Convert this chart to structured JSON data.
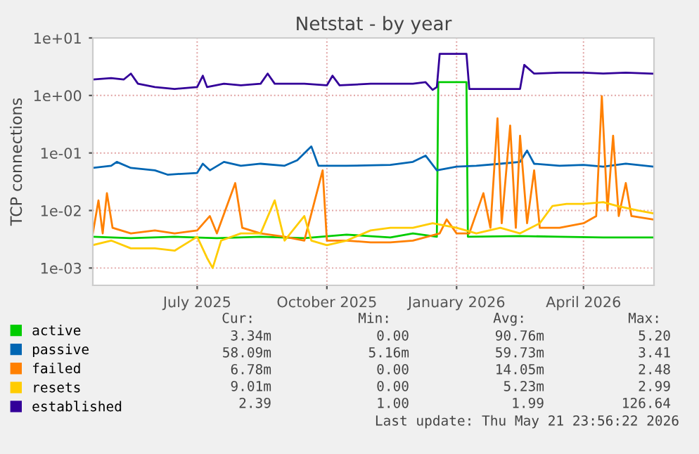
{
  "chart_data": {
    "type": "line",
    "title": "Netstat - by year",
    "ylabel": "TCP connections",
    "log": "y",
    "grid": true,
    "legend": "bottom",
    "marker": "none",
    "line_style": "solid",
    "xlim": [
      "2025-04-18",
      "2026-05-21"
    ],
    "xticks": [
      {
        "value": "2025-07-01",
        "label": "July 2025"
      },
      {
        "value": "2025-10-01",
        "label": "October 2025"
      },
      {
        "value": "2026-01-01",
        "label": "January 2026"
      },
      {
        "value": "2026-04-01",
        "label": "April 2026"
      }
    ],
    "ylim": [
      0.0005,
      10
    ],
    "yticks": [
      {
        "value": 10,
        "label": "1e+01"
      },
      {
        "value": 1,
        "label": "1e+00"
      },
      {
        "value": 0.1,
        "label": "1e-01"
      },
      {
        "value": 0.01,
        "label": "1e-02"
      },
      {
        "value": 0.001,
        "label": "1e-03"
      }
    ],
    "series": [
      {
        "name": "active",
        "color": "#00cc00",
        "x": [
          "2025-04-18",
          "2025-05-15",
          "2025-06-15",
          "2025-07-15",
          "2025-08-15",
          "2025-09-15",
          "2025-10-15",
          "2025-11-15",
          "2025-12-01",
          "2025-12-18",
          "2025-12-19",
          "2026-01-08",
          "2026-01-09",
          "2026-02-15",
          "2026-03-15",
          "2026-04-15",
          "2026-05-20"
        ],
        "values": [
          0.0035,
          0.0033,
          0.0035,
          0.0033,
          0.0035,
          0.0033,
          0.0038,
          0.0034,
          0.004,
          0.0035,
          1.7,
          1.7,
          0.0035,
          0.0036,
          0.0035,
          0.0034,
          0.0034
        ]
      },
      {
        "name": "passive",
        "color": "#0066b3",
        "x": [
          "2025-04-18",
          "2025-05-01",
          "2025-05-05",
          "2025-05-15",
          "2025-06-01",
          "2025-06-10",
          "2025-07-01",
          "2025-07-05",
          "2025-07-10",
          "2025-07-20",
          "2025-08-01",
          "2025-08-15",
          "2025-09-01",
          "2025-09-10",
          "2025-09-20",
          "2025-09-25",
          "2025-10-15",
          "2025-11-15",
          "2025-12-01",
          "2025-12-10",
          "2025-12-18",
          "2026-01-01",
          "2026-01-15",
          "2026-02-01",
          "2026-02-15",
          "2026-02-20",
          "2026-02-25",
          "2026-03-15",
          "2026-04-01",
          "2026-04-15",
          "2026-05-01",
          "2026-05-20"
        ],
        "values": [
          0.055,
          0.06,
          0.07,
          0.055,
          0.05,
          0.042,
          0.045,
          0.065,
          0.05,
          0.07,
          0.06,
          0.065,
          0.06,
          0.075,
          0.13,
          0.06,
          0.06,
          0.062,
          0.07,
          0.09,
          0.05,
          0.058,
          0.06,
          0.065,
          0.07,
          0.11,
          0.065,
          0.06,
          0.062,
          0.058,
          0.065,
          0.058
        ]
      },
      {
        "name": "failed",
        "color": "#ff8000",
        "x": [
          "2025-04-18",
          "2025-04-22",
          "2025-04-25",
          "2025-04-28",
          "2025-05-02",
          "2025-05-15",
          "2025-06-01",
          "2025-06-15",
          "2025-07-01",
          "2025-07-10",
          "2025-07-15",
          "2025-07-28",
          "2025-08-02",
          "2025-08-15",
          "2025-09-01",
          "2025-09-15",
          "2025-09-28",
          "2025-10-01",
          "2025-10-15",
          "2025-11-01",
          "2025-11-15",
          "2025-12-01",
          "2025-12-20",
          "2025-12-25",
          "2026-01-01",
          "2026-01-10",
          "2026-01-20",
          "2026-01-25",
          "2026-01-30",
          "2026-02-02",
          "2026-02-08",
          "2026-02-12",
          "2026-02-15",
          "2026-02-20",
          "2026-02-25",
          "2026-03-01",
          "2026-03-15",
          "2026-04-01",
          "2026-04-10",
          "2026-04-14",
          "2026-04-18",
          "2026-04-22",
          "2026-04-26",
          "2026-05-01",
          "2026-05-05",
          "2026-05-20"
        ],
        "values": [
          0.004,
          0.015,
          0.004,
          0.02,
          0.005,
          0.004,
          0.0045,
          0.004,
          0.0045,
          0.008,
          0.004,
          0.03,
          0.005,
          0.004,
          0.0035,
          0.003,
          0.05,
          0.003,
          0.003,
          0.0028,
          0.0028,
          0.003,
          0.004,
          0.007,
          0.004,
          0.004,
          0.02,
          0.005,
          0.4,
          0.006,
          0.3,
          0.005,
          0.2,
          0.006,
          0.05,
          0.005,
          0.005,
          0.006,
          0.008,
          0.97,
          0.01,
          0.2,
          0.008,
          0.03,
          0.008,
          0.007
        ]
      },
      {
        "name": "resets",
        "color": "#ffcc00",
        "x": [
          "2025-04-18",
          "2025-05-01",
          "2025-05-15",
          "2025-06-01",
          "2025-06-15",
          "2025-07-01",
          "2025-07-08",
          "2025-07-12",
          "2025-07-18",
          "2025-08-01",
          "2025-08-15",
          "2025-08-25",
          "2025-09-01",
          "2025-09-15",
          "2025-09-20",
          "2025-10-01",
          "2025-10-15",
          "2025-11-01",
          "2025-11-15",
          "2025-12-01",
          "2025-12-15",
          "2026-01-01",
          "2026-01-15",
          "2026-02-01",
          "2026-02-15",
          "2026-03-01",
          "2026-03-10",
          "2026-03-20",
          "2026-04-01",
          "2026-04-15",
          "2026-04-25",
          "2026-05-10",
          "2026-05-20"
        ],
        "values": [
          0.0025,
          0.003,
          0.0022,
          0.0022,
          0.002,
          0.0035,
          0.0015,
          0.001,
          0.003,
          0.004,
          0.004,
          0.015,
          0.003,
          0.008,
          0.003,
          0.0025,
          0.003,
          0.0045,
          0.005,
          0.005,
          0.006,
          0.005,
          0.004,
          0.005,
          0.004,
          0.006,
          0.012,
          0.013,
          0.013,
          0.014,
          0.012,
          0.01,
          0.009
        ]
      },
      {
        "name": "established",
        "color": "#330099",
        "x": [
          "2025-04-18",
          "2025-05-01",
          "2025-05-10",
          "2025-05-15",
          "2025-05-20",
          "2025-06-01",
          "2025-06-15",
          "2025-07-01",
          "2025-07-05",
          "2025-07-08",
          "2025-07-20",
          "2025-08-01",
          "2025-08-15",
          "2025-08-20",
          "2025-08-25",
          "2025-09-15",
          "2025-10-01",
          "2025-10-05",
          "2025-10-10",
          "2025-11-01",
          "2025-11-15",
          "2025-12-01",
          "2025-12-10",
          "2025-12-15",
          "2025-12-18",
          "2025-12-20",
          "2026-01-08",
          "2026-01-10",
          "2026-02-15",
          "2026-02-18",
          "2026-02-25",
          "2026-03-15",
          "2026-04-01",
          "2026-04-15",
          "2026-05-01",
          "2026-05-20"
        ],
        "values": [
          1.9,
          2.0,
          1.9,
          2.4,
          1.6,
          1.4,
          1.3,
          1.4,
          2.2,
          1.4,
          1.6,
          1.5,
          1.6,
          2.4,
          1.6,
          1.6,
          1.5,
          2.2,
          1.5,
          1.6,
          1.6,
          1.6,
          1.7,
          1.25,
          1.4,
          5.3,
          5.3,
          1.3,
          1.3,
          3.4,
          2.4,
          2.5,
          2.5,
          2.4,
          2.5,
          2.4
        ]
      }
    ],
    "annotations": [
      "Cur:",
      "Min:",
      "Avg:",
      "Max:",
      "3.34m",
      "0.00",
      "90.76m",
      "5.20",
      "58.09m",
      "5.16m",
      "59.73m",
      "3.41",
      "6.78m",
      "0.00",
      "14.05m",
      "2.48",
      "9.01m",
      "0.00",
      "5.23m",
      "2.99",
      "2.39",
      "1.00",
      "1.99",
      "126.64",
      "Last update: Thu May 21 23:56:22 2026"
    ]
  }
}
